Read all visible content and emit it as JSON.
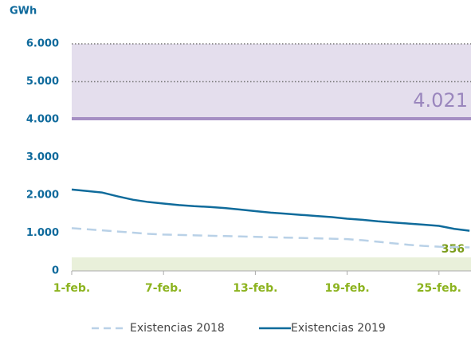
{
  "chart_data": {
    "type": "line",
    "y_unit": "GWh",
    "categories": [
      "1-feb.",
      null,
      null,
      null,
      null,
      null,
      "7-feb.",
      null,
      null,
      null,
      null,
      null,
      "13-feb.",
      null,
      null,
      null,
      null,
      null,
      "19-feb.",
      null,
      null,
      null,
      null,
      null,
      "25-feb.",
      null,
      null
    ],
    "series": [
      {
        "name": "Existencias 2018",
        "color": "#b9d1e7",
        "dashed": true,
        "values": [
          1130,
          1100,
          1070,
          1040,
          1010,
          980,
          960,
          950,
          940,
          930,
          920,
          910,
          900,
          890,
          880,
          870,
          860,
          850,
          840,
          810,
          770,
          730,
          690,
          660,
          640,
          630,
          620
        ]
      },
      {
        "name": "Existencias 2019",
        "color": "#0f6b9b",
        "dashed": false,
        "values": [
          2150,
          2110,
          2070,
          1970,
          1880,
          1820,
          1780,
          1740,
          1710,
          1690,
          1660,
          1620,
          1580,
          1540,
          1510,
          1480,
          1450,
          1420,
          1380,
          1350,
          1310,
          1280,
          1250,
          1220,
          1190,
          1110,
          1060
        ]
      }
    ],
    "bands": [
      {
        "from": 0,
        "to": 356,
        "color": "#e9f0da"
      },
      {
        "from": {
          "value": 4021,
          "label": "4.021"
        },
        "to": 6000,
        "color": "#e4deed"
      }
    ],
    "ylim": [
      0,
      6000
    ],
    "yticks": [
      0,
      {
        "value": 1000,
        "label": "1.000"
      },
      {
        "value": 2000,
        "label": "2.000"
      },
      {
        "value": 3000,
        "label": "3.000"
      },
      {
        "value": 4000,
        "label": "4.000"
      },
      {
        "value": 5000,
        "label": "5.000"
      },
      {
        "value": 6000,
        "label": "6.000"
      }
    ],
    "grid": true
  }
}
